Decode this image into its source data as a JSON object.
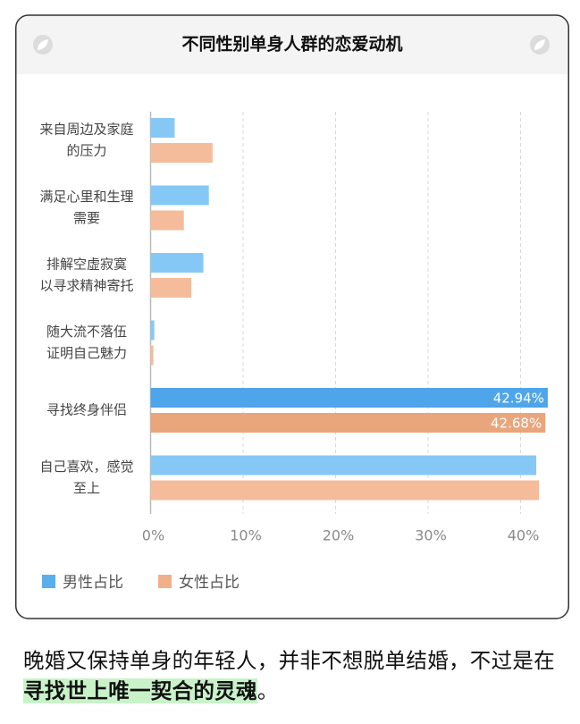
{
  "chart_data": {
    "type": "bar",
    "orientation": "horizontal",
    "title": "不同性别单身人群的恋爱动机",
    "categories": [
      [
        "来自周边及家庭",
        "的压力"
      ],
      [
        "满足心里和生理",
        "需要"
      ],
      [
        "排解空虚寂寞",
        "以寻求精神寄托"
      ],
      [
        "随大流不落伍",
        "证明自己魅力"
      ],
      [
        "寻找终身伴侣"
      ],
      [
        "自己喜欢，感觉",
        "至上"
      ]
    ],
    "series": [
      {
        "name": "男性占比",
        "color": "#5aaeec",
        "colors": [
          "#86c8f5",
          "#86c8f5",
          "#86c8f5",
          "#86c8f5",
          "#4ea5ea",
          "#86c8f5"
        ],
        "values": [
          2.6,
          6.3,
          5.7,
          0.4,
          42.94,
          41.7
        ],
        "value_labels": [
          null,
          null,
          null,
          null,
          "42.94%",
          null
        ]
      },
      {
        "name": "女性占比",
        "color": "#f0b08a",
        "colors": [
          "#f4bc9a",
          "#f4bc9a",
          "#f4bc9a",
          "#f4bc9a",
          "#e9a67c",
          "#f4bc9a"
        ],
        "values": [
          6.7,
          3.6,
          4.4,
          0.3,
          42.68,
          42.0
        ],
        "value_labels": [
          null,
          null,
          null,
          null,
          "42.68%",
          null
        ]
      }
    ],
    "xlim": [
      0,
      43
    ],
    "xticks": [
      {
        "value": 0,
        "label": "0%"
      },
      {
        "value": 10,
        "label": "10%"
      },
      {
        "value": 20,
        "label": "20%"
      },
      {
        "value": 30,
        "label": "30%"
      },
      {
        "value": 40,
        "label": "40%"
      }
    ],
    "grid": true,
    "legend": "bottom-left"
  },
  "caption": [
    "晚婚又保持单身的年轻人，并非不想脱单结婚，不过是在",
    "寻找世上唯一契合的灵魂",
    "。"
  ]
}
